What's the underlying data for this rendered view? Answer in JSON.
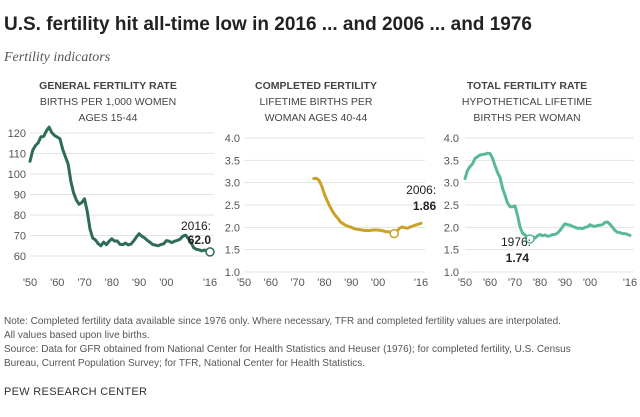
{
  "title": "U.S. fertility hit all-time low in 2016 ... and 2006 ... and 1976",
  "subtitle": "Fertility indicators",
  "notes": [
    "Note: Completed fertility data available since 1976 only. Where necessary, TFR and completed fertility values are interpolated.",
    "All values based upon live births.",
    "Source: Data for GFR obtained from National Center for Health Statistics and Heuser (1976); for completed fertility, U.S. Census",
    "Bureau, Current Population Survey; for TFR, National Center for Health Statistics."
  ],
  "brand": "PEW RESEARCH CENTER",
  "chart_data": [
    {
      "type": "line",
      "title": "GENERAL FERTILITY RATE",
      "subtitle_lines": [
        "BIRTHS PER 1,000 WOMEN",
        "AGES 15-44"
      ],
      "color": "#2e6b58",
      "x_tick_labels": [
        "'50",
        "'60",
        "'70",
        "'80",
        "'90",
        "'00",
        "'16"
      ],
      "x_ticks": [
        1950,
        1960,
        1970,
        1980,
        1990,
        2000,
        2016
      ],
      "xlim": [
        1950,
        2016
      ],
      "ylim": [
        60,
        120
      ],
      "y_ticks": [
        60,
        70,
        80,
        90,
        100,
        110,
        120
      ],
      "annotation": {
        "year": "2016:",
        "value": "62.0",
        "x": 2016,
        "y": 62.0
      },
      "series": [
        {
          "x": [
            1950,
            1951,
            1952,
            1953,
            1954,
            1955,
            1956,
            1957,
            1958,
            1959,
            1960,
            1961,
            1962,
            1963,
            1964,
            1965,
            1966,
            1967,
            1968,
            1969,
            1970,
            1971,
            1972,
            1973,
            1974,
            1975,
            1976,
            1977,
            1978,
            1979,
            1980,
            1981,
            1982,
            1983,
            1984,
            1985,
            1986,
            1987,
            1988,
            1989,
            1990,
            1991,
            1992,
            1993,
            1994,
            1995,
            1996,
            1997,
            1998,
            1999,
            2000,
            2001,
            2002,
            2003,
            2004,
            2005,
            2006,
            2007,
            2008,
            2009,
            2010,
            2011,
            2012,
            2013,
            2014,
            2015,
            2016
          ],
          "values": [
            106.2,
            111.5,
            113.9,
            115.2,
            118.1,
            118.3,
            121.0,
            122.9,
            120.2,
            118.8,
            118.0,
            117.1,
            112.0,
            108.3,
            104.7,
            96.3,
            90.8,
            87.2,
            85.2,
            86.1,
            87.9,
            81.6,
            73.1,
            68.8,
            67.8,
            66.0,
            65.0,
            66.8,
            65.5,
            67.2,
            68.4,
            67.3,
            67.3,
            65.7,
            65.5,
            66.3,
            65.4,
            65.8,
            67.3,
            69.2,
            70.9,
            69.6,
            68.9,
            67.6,
            66.7,
            65.6,
            65.3,
            65.0,
            65.6,
            65.9,
            67.5,
            67.2,
            66.5,
            67.2,
            67.6,
            68.2,
            69.6,
            70.2,
            68.6,
            66.6,
            64.1,
            63.2,
            63.0,
            62.5,
            62.9,
            62.5,
            62.0
          ]
        }
      ]
    },
    {
      "type": "line",
      "title": "COMPLETED FERTILITY",
      "subtitle_lines": [
        "LIFETIME BIRTHS PER",
        "WOMAN AGES 40-44"
      ],
      "color": "#c9a227",
      "x_tick_labels": [
        "'50",
        "'60",
        "'70",
        "'80",
        "'90",
        "'00",
        "'16"
      ],
      "x_ticks": [
        1950,
        1960,
        1970,
        1980,
        1990,
        2000,
        2016
      ],
      "xlim": [
        1950,
        2016
      ],
      "ylim": [
        1.0,
        4.0
      ],
      "y_ticks": [
        "1.0",
        "1.5",
        "2.0",
        "2.5",
        "3.0",
        "3.5",
        "4.0"
      ],
      "annotation": {
        "year": "2006:",
        "value": "1.86",
        "x": 2006,
        "y": 1.86
      },
      "series": [
        {
          "x": [
            1976,
            1977,
            1978,
            1979,
            1980,
            1981,
            1982,
            1983,
            1984,
            1985,
            1986,
            1987,
            1988,
            1989,
            1990,
            1991,
            1992,
            1993,
            1994,
            1995,
            1996,
            1997,
            1998,
            1999,
            2000,
            2001,
            2002,
            2003,
            2004,
            2005,
            2006,
            2007,
            2008,
            2009,
            2010,
            2011,
            2012,
            2013,
            2014,
            2015,
            2016
          ],
          "values": [
            3.09,
            3.1,
            3.05,
            2.92,
            2.74,
            2.6,
            2.47,
            2.36,
            2.27,
            2.2,
            2.12,
            2.08,
            2.04,
            2.02,
            2.0,
            1.97,
            1.96,
            1.95,
            1.94,
            1.93,
            1.93,
            1.93,
            1.94,
            1.94,
            1.94,
            1.93,
            1.92,
            1.9,
            1.9,
            1.89,
            1.86,
            1.91,
            1.98,
            2.01,
            1.99,
            1.98,
            2.01,
            2.03,
            2.05,
            2.07,
            2.09
          ]
        }
      ]
    },
    {
      "type": "line",
      "title": "TOTAL FERTILITY RATE",
      "subtitle_lines": [
        "HYPOTHETICAL LIFETIME",
        "BIRTHS PER WOMAN"
      ],
      "color": "#5ab89a",
      "x_tick_labels": [
        "'50",
        "'60",
        "'70",
        "'80",
        "'90",
        "'00",
        "'16"
      ],
      "x_ticks": [
        1950,
        1960,
        1970,
        1980,
        1990,
        2000,
        2016
      ],
      "xlim": [
        1950,
        2016
      ],
      "ylim": [
        1.0,
        4.0
      ],
      "y_ticks": [
        "1.0",
        "1.5",
        "2.0",
        "2.5",
        "3.0",
        "3.5",
        "4.0"
      ],
      "annotation": {
        "year": "1976:",
        "value": "1.74",
        "x": 1976,
        "y": 1.74
      },
      "series": [
        {
          "x": [
            1950,
            1951,
            1952,
            1953,
            1954,
            1955,
            1956,
            1957,
            1958,
            1959,
            1960,
            1961,
            1962,
            1963,
            1964,
            1965,
            1966,
            1967,
            1968,
            1969,
            1970,
            1971,
            1972,
            1973,
            1974,
            1975,
            1976,
            1977,
            1978,
            1979,
            1980,
            1981,
            1982,
            1983,
            1984,
            1985,
            1986,
            1987,
            1988,
            1989,
            1990,
            1991,
            1992,
            1993,
            1994,
            1995,
            1996,
            1997,
            1998,
            1999,
            2000,
            2001,
            2002,
            2003,
            2004,
            2005,
            2006,
            2007,
            2008,
            2009,
            2010,
            2011,
            2012,
            2013,
            2014,
            2015,
            2016
          ],
          "values": [
            3.09,
            3.27,
            3.36,
            3.42,
            3.54,
            3.58,
            3.62,
            3.63,
            3.64,
            3.66,
            3.65,
            3.55,
            3.38,
            3.23,
            3.12,
            2.88,
            2.72,
            2.55,
            2.46,
            2.46,
            2.48,
            2.27,
            2.01,
            1.87,
            1.83,
            1.78,
            1.74,
            1.79,
            1.76,
            1.81,
            1.84,
            1.81,
            1.83,
            1.8,
            1.81,
            1.84,
            1.84,
            1.87,
            1.93,
            2.01,
            2.08,
            2.06,
            2.05,
            2.02,
            2.0,
            1.98,
            1.98,
            1.97,
            2.0,
            2.01,
            2.06,
            2.03,
            2.02,
            2.04,
            2.05,
            2.06,
            2.11,
            2.12,
            2.07,
            2.0,
            1.93,
            1.89,
            1.88,
            1.86,
            1.86,
            1.84,
            1.82
          ]
        }
      ]
    }
  ]
}
